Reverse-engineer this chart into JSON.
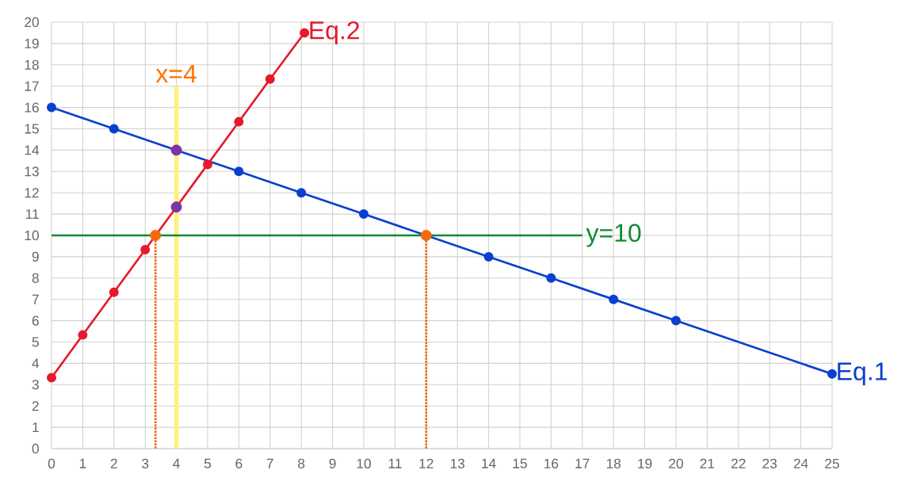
{
  "chart_data": {
    "type": "line",
    "xlim": [
      0,
      25
    ],
    "ylim": [
      0,
      20
    ],
    "xticks": [
      0,
      1,
      2,
      3,
      4,
      5,
      6,
      7,
      8,
      9,
      10,
      11,
      12,
      13,
      14,
      15,
      16,
      17,
      18,
      19,
      20,
      21,
      22,
      23,
      24,
      25
    ],
    "yticks": [
      0,
      1,
      2,
      3,
      4,
      5,
      6,
      7,
      8,
      9,
      10,
      11,
      12,
      13,
      14,
      15,
      16,
      17,
      18,
      19,
      20
    ],
    "grid": true,
    "ref_lines": [
      {
        "axis": "x",
        "value": 4,
        "label": "x=4",
        "color": "#fff176"
      }
    ],
    "series": [
      {
        "name": "Eq.1",
        "color": "#0a3fd0",
        "marker": "circle",
        "x": [
          0,
          2,
          4,
          6,
          8,
          10,
          14,
          16,
          18,
          20,
          25
        ],
        "values": [
          16,
          15,
          14,
          13,
          12,
          11,
          9,
          8,
          7,
          6,
          3.5
        ]
      },
      {
        "name": "Eq.2",
        "color": "#e8192c",
        "marker": "circle",
        "x": [
          0,
          1,
          2,
          3,
          4,
          5,
          6,
          7,
          8.1
        ],
        "values": [
          3.33,
          5.33,
          7.33,
          9.33,
          11.33,
          13.33,
          15.33,
          17.33,
          19.5
        ]
      },
      {
        "name": "y=10",
        "color": "#0f8a34",
        "marker": "none",
        "x": [
          0,
          17
        ],
        "values": [
          10,
          10
        ]
      },
      {
        "type": "line",
        "color": "#f26b10",
        "marker": "none",
        "line_style": "dotted",
        "x": [
          3.33,
          3.33
        ],
        "values": [
          0,
          10
        ]
      },
      {
        "type": "line",
        "color": "#f26b10",
        "marker": "none",
        "line_style": "dotted",
        "x": [
          12,
          12
        ],
        "values": [
          0,
          10
        ]
      },
      {
        "type": "scatter",
        "color": "#f26b10",
        "marker": "circle",
        "x": [
          3.33,
          12
        ],
        "values": [
          10,
          10
        ]
      },
      {
        "type": "scatter",
        "color": "#7b35a8",
        "marker": "circle",
        "x": [
          4,
          4
        ],
        "values": [
          14,
          11.33
        ]
      }
    ]
  }
}
